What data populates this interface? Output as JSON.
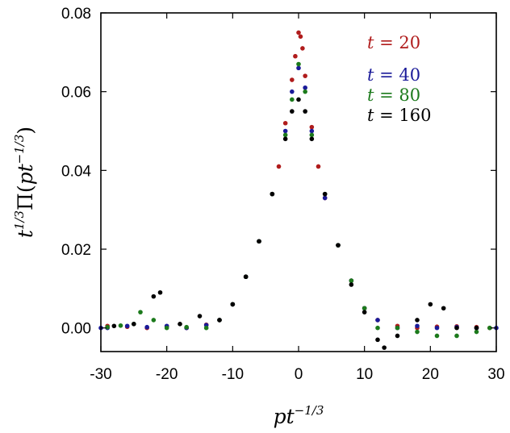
{
  "chart_data": {
    "type": "scatter",
    "xlabel": "pt^{-1/3}",
    "ylabel": "t^{1/3}Π(pt^{-1/3})",
    "xlim": [
      -30,
      30
    ],
    "ylim": [
      -0.006,
      0.08
    ],
    "x_ticks": [
      {
        "value": -30,
        "label": "-30"
      },
      {
        "value": -20,
        "label": "-20"
      },
      {
        "value": -10,
        "label": "-10"
      },
      {
        "value": 0,
        "label": "0"
      },
      {
        "value": 10,
        "label": "10"
      },
      {
        "value": 20,
        "label": "20"
      },
      {
        "value": 30,
        "label": "30"
      }
    ],
    "y_ticks": [
      {
        "value": 0.0,
        "label": "0.00"
      },
      {
        "value": 0.02,
        "label": "0.02"
      },
      {
        "value": 0.04,
        "label": "0.04"
      },
      {
        "value": 0.06,
        "label": "0.06"
      },
      {
        "value": 0.08,
        "label": "0.08"
      }
    ],
    "legend_position": "top-right",
    "series": [
      {
        "name": "t = 20",
        "color": "#b01c1c",
        "t": 20,
        "points": [
          [
            -29,
            0.0005
          ],
          [
            -26,
            0.0003
          ],
          [
            -23,
            0.0
          ],
          [
            -20,
            0.0004
          ],
          [
            -17,
            0.0
          ],
          [
            -14,
            0.0008
          ],
          [
            -12,
            0.002
          ],
          [
            -10,
            0.006
          ],
          [
            -8,
            0.013
          ],
          [
            -6,
            0.022
          ],
          [
            -4,
            0.034
          ],
          [
            -3,
            0.041
          ],
          [
            -2,
            0.052
          ],
          [
            -1,
            0.063
          ],
          [
            -0.5,
            0.069
          ],
          [
            0,
            0.075
          ],
          [
            0.3,
            0.074
          ],
          [
            0.6,
            0.071
          ],
          [
            1,
            0.064
          ],
          [
            2,
            0.051
          ],
          [
            3,
            0.041
          ],
          [
            4,
            0.033
          ],
          [
            6,
            0.021
          ],
          [
            8,
            0.012
          ],
          [
            10,
            0.005
          ],
          [
            12,
            0.002
          ],
          [
            15,
            0.0005
          ],
          [
            18,
            0.0
          ],
          [
            21,
            0.0003
          ],
          [
            24,
            0.0004
          ],
          [
            27,
            0.0002
          ],
          [
            29,
            0.0
          ]
        ]
      },
      {
        "name": "t = 40",
        "color": "#1a1a99",
        "t": 40,
        "points": [
          [
            -30,
            0.0
          ],
          [
            -29,
            0.0
          ],
          [
            -26,
            0.0005
          ],
          [
            -23,
            0.0002
          ],
          [
            -20,
            0.0005
          ],
          [
            -17,
            0.0
          ],
          [
            -14,
            0.0007
          ],
          [
            -12,
            0.002
          ],
          [
            -10,
            0.006
          ],
          [
            -8,
            0.013
          ],
          [
            -6,
            0.022
          ],
          [
            -4,
            0.034
          ],
          [
            -2,
            0.05
          ],
          [
            -1,
            0.06
          ],
          [
            0,
            0.066
          ],
          [
            1,
            0.061
          ],
          [
            2,
            0.05
          ],
          [
            4,
            0.033
          ],
          [
            6,
            0.021
          ],
          [
            8,
            0.012
          ],
          [
            10,
            0.005
          ],
          [
            12,
            0.002
          ],
          [
            15,
            0.0
          ],
          [
            18,
            0.0005
          ],
          [
            21,
            0.0
          ],
          [
            24,
            0.0002
          ],
          [
            27,
            0.0
          ],
          [
            30,
            0.0
          ]
        ]
      },
      {
        "name": "t = 80",
        "color": "#1c7a1c",
        "t": 80,
        "points": [
          [
            -29,
            0.0002
          ],
          [
            -27,
            0.0006
          ],
          [
            -25,
            0.001
          ],
          [
            -24,
            0.004
          ],
          [
            -22,
            0.002
          ],
          [
            -20,
            0.0
          ],
          [
            -17,
            0.0002
          ],
          [
            -14,
            0.0
          ],
          [
            -12,
            0.002
          ],
          [
            -10,
            0.006
          ],
          [
            -8,
            0.013
          ],
          [
            -6,
            0.022
          ],
          [
            -4,
            0.034
          ],
          [
            -2,
            0.049
          ],
          [
            -1,
            0.058
          ],
          [
            0,
            0.067
          ],
          [
            1,
            0.06
          ],
          [
            2,
            0.049
          ],
          [
            4,
            0.034
          ],
          [
            6,
            0.021
          ],
          [
            8,
            0.012
          ],
          [
            10,
            0.005
          ],
          [
            12,
            0.0
          ],
          [
            15,
            0.0
          ],
          [
            18,
            -0.001
          ],
          [
            21,
            -0.002
          ],
          [
            24,
            -0.002
          ],
          [
            27,
            -0.001
          ],
          [
            29,
            0.0
          ]
        ]
      },
      {
        "name": "t = 160",
        "color": "#000000",
        "t": 160,
        "points": [
          [
            -28,
            0.0005
          ],
          [
            -25,
            0.001
          ],
          [
            -22,
            0.008
          ],
          [
            -21,
            0.009
          ],
          [
            -18,
            0.001
          ],
          [
            -15,
            0.003
          ],
          [
            -12,
            0.002
          ],
          [
            -10,
            0.006
          ],
          [
            -8,
            0.013
          ],
          [
            -6,
            0.022
          ],
          [
            -4,
            0.034
          ],
          [
            -2,
            0.048
          ],
          [
            -1,
            0.055
          ],
          [
            0,
            0.058
          ],
          [
            1,
            0.055
          ],
          [
            2,
            0.048
          ],
          [
            4,
            0.034
          ],
          [
            6,
            0.021
          ],
          [
            8,
            0.011
          ],
          [
            10,
            0.004
          ],
          [
            12,
            -0.003
          ],
          [
            13,
            -0.005
          ],
          [
            15,
            -0.002
          ],
          [
            18,
            0.002
          ],
          [
            20,
            0.006
          ],
          [
            22,
            0.005
          ],
          [
            24,
            0.0
          ],
          [
            27,
            0.0
          ]
        ]
      }
    ]
  }
}
